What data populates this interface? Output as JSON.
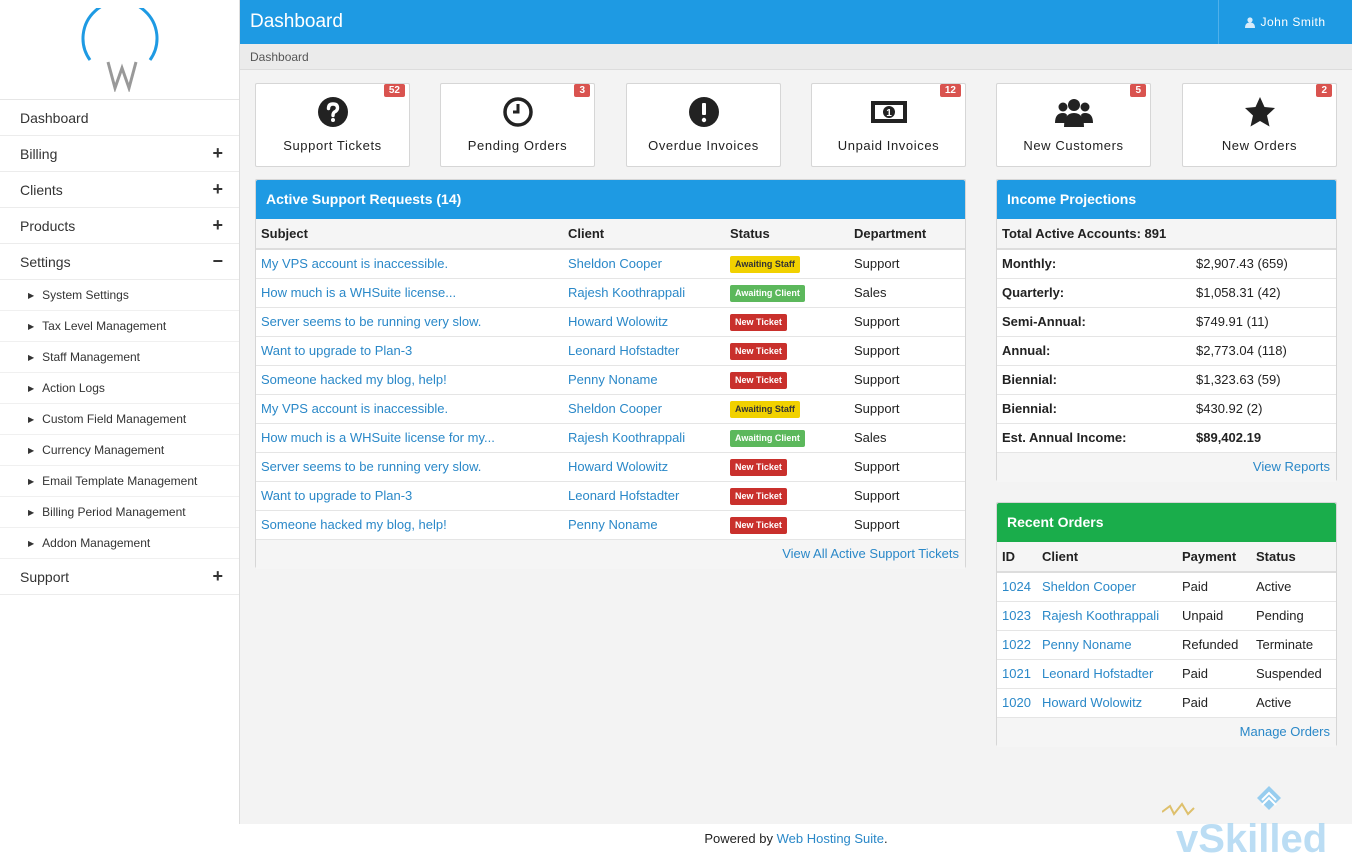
{
  "app": {
    "title": "Dashboard",
    "user": "John Smith",
    "breadcrumb": "Dashboard"
  },
  "sidebar": {
    "items": [
      {
        "label": "Dashboard",
        "toggle": ""
      },
      {
        "label": "Billing",
        "toggle": "+"
      },
      {
        "label": "Clients",
        "toggle": "+"
      },
      {
        "label": "Products",
        "toggle": "+"
      },
      {
        "label": "Settings",
        "toggle": "−"
      }
    ],
    "settings_sub": [
      "System Settings",
      "Tax Level Management",
      "Staff Management",
      "Action Logs",
      "Custom Field Management",
      "Currency Management",
      "Email Template Management",
      "Billing Period Management",
      "Addon Management"
    ],
    "support": {
      "label": "Support",
      "toggle": "+"
    }
  },
  "stats": [
    {
      "label": "Support Tickets",
      "count": "52",
      "icon": "question-circle-icon"
    },
    {
      "label": "Pending Orders",
      "count": "3",
      "icon": "clock-icon"
    },
    {
      "label": "Overdue Invoices",
      "count": "",
      "icon": "exclamation-circle-icon"
    },
    {
      "label": "Unpaid Invoices",
      "count": "12",
      "icon": "money-bill-icon"
    },
    {
      "label": "New Customers",
      "count": "5",
      "icon": "users-icon"
    },
    {
      "label": "New Orders",
      "count": "2",
      "icon": "star-icon"
    }
  ],
  "support": {
    "title": "Active Support Requests (14)",
    "columns": [
      "Subject",
      "Client",
      "Status",
      "Department"
    ],
    "rows": [
      {
        "subject": "My VPS account is inaccessible.",
        "client": "Sheldon Cooper",
        "status": "Awaiting Staff",
        "status_color": "yellow",
        "dept": "Support"
      },
      {
        "subject": "How much is a WHSuite license...",
        "client": "Rajesh Koothrappali",
        "status": "Awaiting Client",
        "status_color": "green",
        "dept": "Sales"
      },
      {
        "subject": "Server seems to be running very slow.",
        "client": "Howard Wolowitz",
        "status": "New Ticket",
        "status_color": "red",
        "dept": "Support"
      },
      {
        "subject": "Want to upgrade to Plan-3",
        "client": "Leonard Hofstadter",
        "status": "New Ticket",
        "status_color": "red",
        "dept": "Support"
      },
      {
        "subject": "Someone hacked my blog, help!",
        "client": "Penny Noname",
        "status": "New Ticket",
        "status_color": "red",
        "dept": "Support"
      },
      {
        "subject": "My VPS account is inaccessible.",
        "client": "Sheldon Cooper",
        "status": "Awaiting Staff",
        "status_color": "yellow",
        "dept": "Support"
      },
      {
        "subject": "How much is a WHSuite license for my...",
        "client": "Rajesh Koothrappali",
        "status": "Awaiting Client",
        "status_color": "green",
        "dept": "Sales"
      },
      {
        "subject": "Server seems to be running very slow.",
        "client": "Howard Wolowitz",
        "status": "New Ticket",
        "status_color": "red",
        "dept": "Support"
      },
      {
        "subject": "Want to upgrade to Plan-3",
        "client": "Leonard Hofstadter",
        "status": "New Ticket",
        "status_color": "red",
        "dept": "Support"
      },
      {
        "subject": "Someone hacked my blog, help!",
        "client": "Penny Noname",
        "status": "New Ticket",
        "status_color": "red",
        "dept": "Support"
      }
    ],
    "footer_link": "View All Active Support Tickets"
  },
  "income": {
    "title": "Income Projections",
    "header": "Total Active Accounts: 891",
    "rows": [
      {
        "label": "Monthly:",
        "value": "$2,907.43 (659)"
      },
      {
        "label": "Quarterly:",
        "value": "$1,058.31 (42)"
      },
      {
        "label": "Semi-Annual:",
        "value": "$749.91 (11)"
      },
      {
        "label": "Annual:",
        "value": "$2,773.04 (118)"
      },
      {
        "label": "Biennial:",
        "value": "$1,323.63 (59)"
      },
      {
        "label": "Biennial:",
        "value": "$430.92 (2)"
      },
      {
        "label": "Est. Annual Income:",
        "value": "$89,402.19",
        "bold": true
      }
    ],
    "footer_link": "View Reports"
  },
  "orders": {
    "title": "Recent Orders",
    "columns": [
      "ID",
      "Client",
      "Payment",
      "Status"
    ],
    "rows": [
      {
        "id": "1024",
        "client": "Sheldon Cooper",
        "payment": "Paid",
        "status": "Active"
      },
      {
        "id": "1023",
        "client": "Rajesh Koothrappali",
        "payment": "Unpaid",
        "status": "Pending"
      },
      {
        "id": "1022",
        "client": "Penny Noname",
        "payment": "Refunded",
        "status": "Terminate"
      },
      {
        "id": "1021",
        "client": "Leonard Hofstadter",
        "payment": "Paid",
        "status": "Suspended"
      },
      {
        "id": "1020",
        "client": "Howard Wolowitz",
        "payment": "Paid",
        "status": "Active"
      }
    ],
    "footer_link": "Manage Orders"
  },
  "footer": {
    "prefix": "Powered by ",
    "link": "Web Hosting Suite",
    "suffix": "."
  },
  "watermark": {
    "text": "vSkilled"
  },
  "colors": {
    "primary": "#1e9ae3",
    "success": "#1aad4b",
    "danger": "#c9302c",
    "warning": "#f1d100",
    "awaiting_client": "#5cb85c"
  }
}
